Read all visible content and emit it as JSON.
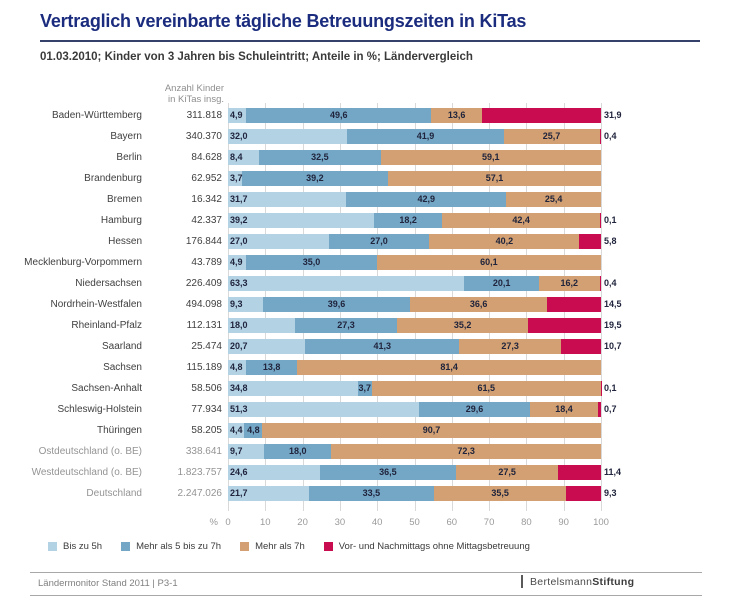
{
  "header": {
    "title": "Vertraglich vereinbarte tägliche Betreuungszeiten in KiTas",
    "subtitle": "01.03.2010; Kinder von 3 Jahren bis Schuleintritt; Anteile in %; Ländervergleich"
  },
  "footer": {
    "left_text": "Ländermonitor Stand 2011 | P3-1",
    "logo_prefix": "Bertelsmann",
    "logo_suffix": "Stiftung"
  },
  "chart_data": {
    "type": "bar",
    "orientation": "horizontal",
    "stacked": true,
    "title": "Vertraglich vereinbarte tägliche Betreuungszeiten in KiTas",
    "subtitle": "01.03.2010; Kinder von 3 Jahren bis Schuleintritt; Anteile in %; Ländervergleich",
    "count_header": [
      "Anzahl Kinder",
      "in KiTas insg."
    ],
    "axis": {
      "unit": "%",
      "ticks": [
        0,
        10,
        20,
        30,
        40,
        50,
        60,
        70,
        80,
        90,
        100
      ],
      "xlim": [
        0,
        100
      ]
    },
    "grid": true,
    "legend_position": "bottom",
    "value_format": "percent with German decimal comma",
    "series": [
      {
        "name": "Bis zu 5h",
        "color": "#b3d3e5"
      },
      {
        "name": "Mehr als 5 bis zu 7h",
        "color": "#74a7c6"
      },
      {
        "name": "Mehr als 7h",
        "color": "#d2a072"
      },
      {
        "name": "Vor- und Nachmittags ohne Mittagsbetreuung",
        "color": "#c90b4f"
      }
    ],
    "rows": [
      {
        "label": "Baden-Württemberg",
        "count": "311.818",
        "muted": false,
        "values": [
          4.9,
          49.6,
          13.6,
          31.9
        ]
      },
      {
        "label": "Bayern",
        "count": "340.370",
        "muted": false,
        "values": [
          32.0,
          41.9,
          25.7,
          0.4
        ]
      },
      {
        "label": "Berlin",
        "count": "84.628",
        "muted": false,
        "values": [
          8.4,
          32.5,
          59.1,
          null
        ]
      },
      {
        "label": "Brandenburg",
        "count": "62.952",
        "muted": false,
        "values": [
          3.7,
          39.2,
          57.1,
          null
        ]
      },
      {
        "label": "Bremen",
        "count": "16.342",
        "muted": false,
        "values": [
          31.7,
          42.9,
          25.4,
          null
        ]
      },
      {
        "label": "Hamburg",
        "count": "42.337",
        "muted": false,
        "values": [
          39.2,
          18.2,
          42.4,
          0.1
        ]
      },
      {
        "label": "Hessen",
        "count": "176.844",
        "muted": false,
        "values": [
          27.0,
          27.0,
          40.2,
          5.8
        ]
      },
      {
        "label": "Mecklenburg-Vorpommern",
        "count": "43.789",
        "muted": false,
        "values": [
          4.9,
          35.0,
          60.1,
          null
        ]
      },
      {
        "label": "Niedersachsen",
        "count": "226.409",
        "muted": false,
        "values": [
          63.3,
          20.1,
          16.2,
          0.4
        ]
      },
      {
        "label": "Nordrhein-Westfalen",
        "count": "494.098",
        "muted": false,
        "values": [
          9.3,
          39.6,
          36.6,
          14.5
        ]
      },
      {
        "label": "Rheinland-Pfalz",
        "count": "112.131",
        "muted": false,
        "values": [
          18.0,
          27.3,
          35.2,
          19.5
        ]
      },
      {
        "label": "Saarland",
        "count": "25.474",
        "muted": false,
        "values": [
          20.7,
          41.3,
          27.3,
          10.7
        ]
      },
      {
        "label": "Sachsen",
        "count": "115.189",
        "muted": false,
        "values": [
          4.8,
          13.8,
          81.4,
          null
        ]
      },
      {
        "label": "Sachsen-Anhalt",
        "count": "58.506",
        "muted": false,
        "values": [
          34.8,
          3.7,
          61.5,
          0.1
        ]
      },
      {
        "label": "Schleswig-Holstein",
        "count": "77.934",
        "muted": false,
        "values": [
          51.3,
          29.6,
          18.4,
          0.7
        ]
      },
      {
        "label": "Thüringen",
        "count": "58.205",
        "muted": false,
        "values": [
          4.4,
          4.8,
          90.7,
          null
        ]
      },
      {
        "label": "Ostdeutschland (o. BE)",
        "count": "338.641",
        "muted": true,
        "values": [
          9.7,
          18.0,
          72.3,
          null
        ]
      },
      {
        "label": "Westdeutschland (o. BE)",
        "count": "1.823.757",
        "muted": true,
        "values": [
          24.6,
          36.5,
          27.5,
          11.4
        ]
      },
      {
        "label": "Deutschland",
        "count": "2.247.026",
        "muted": true,
        "values": [
          21.7,
          33.5,
          35.5,
          9.3
        ]
      }
    ],
    "colors": {
      "title": "#1b2c7e",
      "bar_label": "#20243c",
      "grid": "#d9d9d9",
      "muted_label": "#949494"
    }
  }
}
